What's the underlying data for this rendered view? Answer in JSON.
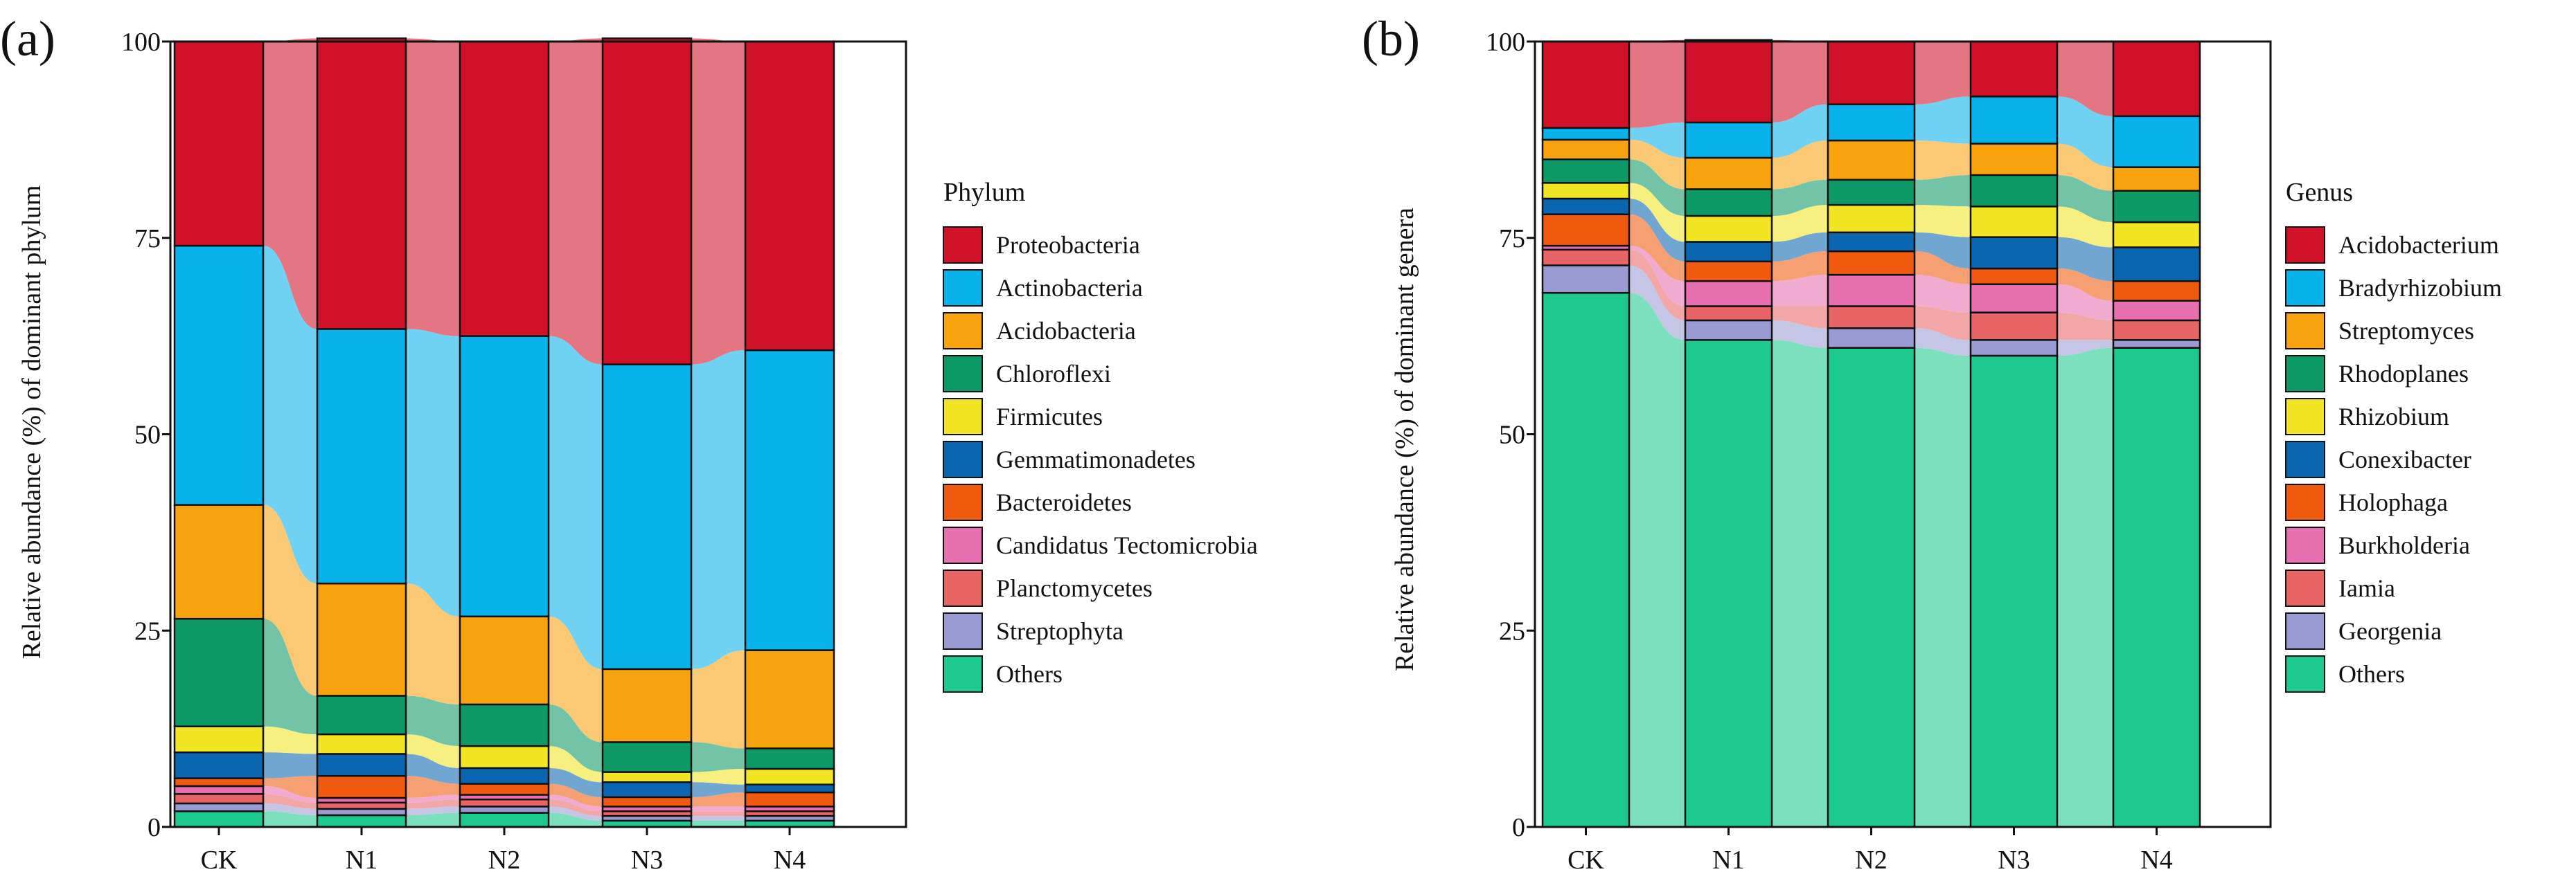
{
  "figure": {
    "panels": [
      "(a)",
      "(b)"
    ]
  },
  "chart_data": [
    {
      "type": "bar",
      "stacked": true,
      "flow_ribbons": true,
      "panel_label": "(a)",
      "title": "",
      "xlabel": "",
      "ylabel": "Relative abundance (%) of dominant phylum",
      "ylim": [
        0,
        100
      ],
      "yticks": [
        "0",
        "25",
        "50",
        "75",
        "100"
      ],
      "categories": [
        "CK",
        "N1",
        "N2",
        "N3",
        "N4"
      ],
      "legend_title": "Phylum",
      "legend_position": "right",
      "series": [
        {
          "name": "Others",
          "color": "#1DC98F",
          "values": [
            2.0,
            1.5,
            1.8,
            0.8,
            0.8
          ]
        },
        {
          "name": "Streptophyta",
          "color": "#9B9BD3",
          "values": [
            1.0,
            0.8,
            0.8,
            0.6,
            0.6
          ]
        },
        {
          "name": "Planctomycetes",
          "color": "#E86565",
          "values": [
            1.2,
            0.8,
            0.9,
            0.6,
            0.6
          ]
        },
        {
          "name": "Candidatus Tectomicrobia",
          "color": "#E66FB0",
          "values": [
            1.0,
            0.6,
            0.6,
            0.6,
            0.6
          ]
        },
        {
          "name": "Bacteroidetes",
          "color": "#F05A0E",
          "values": [
            1.0,
            2.8,
            1.4,
            1.2,
            1.8
          ]
        },
        {
          "name": "Gemmatimonadetes",
          "color": "#0A66B0",
          "values": [
            3.3,
            2.8,
            2.0,
            1.9,
            1.0
          ]
        },
        {
          "name": "Firmicutes",
          "color": "#F2E524",
          "values": [
            3.3,
            2.5,
            2.8,
            1.3,
            2.0
          ]
        },
        {
          "name": "Chloroflexi",
          "color": "#0E9A67",
          "values": [
            13.7,
            4.9,
            5.3,
            3.8,
            2.6
          ]
        },
        {
          "name": "Acidobacteria",
          "color": "#F8A20E",
          "values": [
            14.5,
            14.3,
            11.2,
            9.3,
            12.5
          ]
        },
        {
          "name": "Actinobacteria",
          "color": "#08B2EA",
          "values": [
            33.0,
            32.4,
            35.7,
            38.8,
            38.2
          ]
        },
        {
          "name": "Proteobacteria",
          "color": "#D0112A",
          "values": [
            26.0,
            37.0,
            37.5,
            41.5,
            39.3
          ]
        }
      ],
      "legend_order": [
        "Proteobacteria",
        "Actinobacteria",
        "Acidobacteria",
        "Chloroflexi",
        "Firmicutes",
        "Gemmatimonadetes",
        "Bacteroidetes",
        "Candidatus Tectomicrobia",
        "Planctomycetes",
        "Streptophyta",
        "Others"
      ]
    },
    {
      "type": "bar",
      "stacked": true,
      "flow_ribbons": true,
      "panel_label": "(b)",
      "title": "",
      "xlabel": "",
      "ylabel": "Relative abundance (%) of dominant genera",
      "ylim": [
        0,
        100
      ],
      "yticks": [
        "0",
        "25",
        "50",
        "75",
        "100"
      ],
      "categories": [
        "CK",
        "N1",
        "N2",
        "N3",
        "N4"
      ],
      "legend_title": "Genus",
      "legend_position": "right",
      "series": [
        {
          "name": "Others",
          "color": "#1DC98F",
          "values": [
            68.0,
            62.0,
            61.0,
            60.0,
            61.0
          ]
        },
        {
          "name": "Georgenia",
          "color": "#9B9BD3",
          "values": [
            3.5,
            2.5,
            2.5,
            2.0,
            1.0
          ]
        },
        {
          "name": "Iamia",
          "color": "#E86565",
          "values": [
            2.0,
            1.8,
            2.8,
            3.5,
            2.5
          ]
        },
        {
          "name": "Burkholderia",
          "color": "#E66FB0",
          "values": [
            0.5,
            3.2,
            4.0,
            3.6,
            2.5
          ]
        },
        {
          "name": "Holophaga",
          "color": "#F05A0E",
          "values": [
            4.0,
            2.5,
            3.0,
            2.0,
            2.5
          ]
        },
        {
          "name": "Conexibacter",
          "color": "#0A66B0",
          "values": [
            2.0,
            2.5,
            2.4,
            4.0,
            4.3
          ]
        },
        {
          "name": "Rhizobium",
          "color": "#F2E524",
          "values": [
            2.0,
            3.3,
            3.5,
            3.9,
            3.2
          ]
        },
        {
          "name": "Rhodoplanes",
          "color": "#0E9A67",
          "values": [
            3.0,
            3.4,
            3.2,
            4.0,
            4.0
          ]
        },
        {
          "name": "Streptomyces",
          "color": "#F8A20E",
          "values": [
            2.5,
            4.0,
            5.0,
            4.0,
            3.0
          ]
        },
        {
          "name": "Bradyrhizobium",
          "color": "#08B2EA",
          "values": [
            1.5,
            4.5,
            4.6,
            6.0,
            6.5
          ]
        },
        {
          "name": "Acidobacterium",
          "color": "#D0112A",
          "values": [
            11.0,
            10.5,
            8.0,
            7.0,
            9.5
          ]
        }
      ],
      "legend_order": [
        "Acidobacterium",
        "Bradyrhizobium",
        "Streptomyces",
        "Rhodoplanes",
        "Rhizobium",
        "Conexibacter",
        "Holophaga",
        "Burkholderia",
        "Iamia",
        "Georgenia",
        "Others"
      ]
    }
  ]
}
